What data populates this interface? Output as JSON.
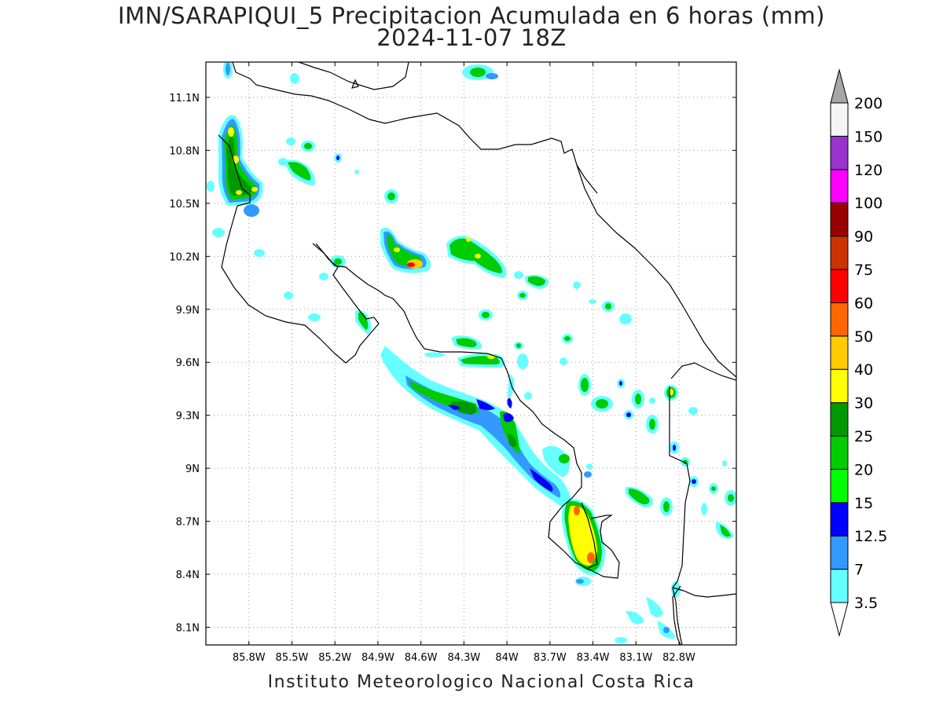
{
  "title": {
    "line1": "IMN/SARAPIQUI_5 Precipitacion Acumulada en 6 horas (mm)",
    "line2": "2024-11-07 18Z"
  },
  "footer": "Instituto Meteorologico Nacional Costa Rica",
  "map": {
    "lon_range": [
      -86.1,
      -82.4
    ],
    "lat_range": [
      8.0,
      11.3
    ],
    "lon_ticks": [
      "85.8W",
      "85.5W",
      "85.2W",
      "84.9W",
      "84.6W",
      "84.3W",
      "84W",
      "83.7W",
      "83.4W",
      "83.1W",
      "82.8W"
    ],
    "lat_ticks": [
      "11.1N",
      "10.8N",
      "10.5N",
      "10.2N",
      "9.9N",
      "9.6N",
      "9.3N",
      "9N",
      "8.7N",
      "8.4N",
      "8.1N"
    ],
    "grid": "dotted"
  },
  "colorbar": {
    "levels": [
      "3.5",
      "7",
      "12.5",
      "15",
      "20",
      "25",
      "30",
      "40",
      "50",
      "60",
      "75",
      "90",
      "100",
      "120",
      "150",
      "200"
    ],
    "colors": [
      "#66ffff",
      "#3399ff",
      "#0000ff",
      "#00ff00",
      "#00cc00",
      "#009900",
      "#ffff00",
      "#ffcc00",
      "#ff6600",
      "#ff0000",
      "#cc3300",
      "#990000",
      "#ff00ff",
      "#9933cc",
      "#f5f5f5",
      "#a6a6a6"
    ],
    "upper_arrow": "#a6a6a6",
    "lower_arrow": "#ffffff"
  }
}
